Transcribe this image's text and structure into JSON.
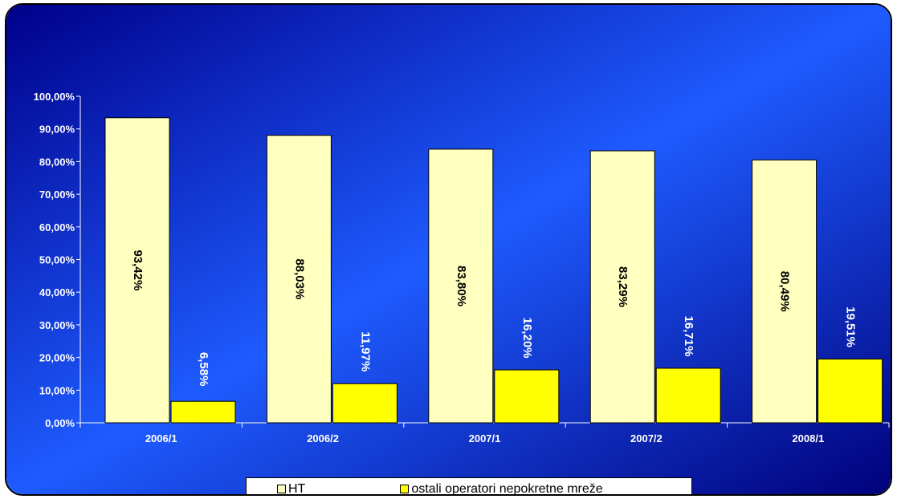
{
  "chart_data": {
    "type": "bar",
    "categories": [
      "2006/1",
      "2006/2",
      "2007/1",
      "2007/2",
      "2008/1"
    ],
    "series": [
      {
        "name": "HT",
        "values": [
          93.42,
          88.03,
          83.8,
          83.29,
          80.49
        ],
        "labels": [
          "93,42%",
          "88,03%",
          "83,80%",
          "83,29%",
          "80,49%"
        ],
        "color": "#FFFFC0"
      },
      {
        "name": "ostali operatori nepokretne mreže",
        "values": [
          6.58,
          11.97,
          16.2,
          16.71,
          19.51
        ],
        "labels": [
          "6,58%",
          "11,97%",
          "16,20%",
          "16,71%",
          "19,51%"
        ],
        "color": "#FFFF00"
      }
    ],
    "ylim": [
      0,
      100
    ],
    "yticks": [
      "0,00%",
      "10,00%",
      "20,00%",
      "30,00%",
      "40,00%",
      "50,00%",
      "60,00%",
      "70,00%",
      "80,00%",
      "90,00%",
      "100,00%"
    ],
    "grid": false,
    "legend_position": "bottom",
    "background": {
      "from": "#00008B",
      "via": "#1E5BFF",
      "to": "#00007A"
    },
    "text_color": "#FFFFFF",
    "value_label_color": "#000000"
  }
}
